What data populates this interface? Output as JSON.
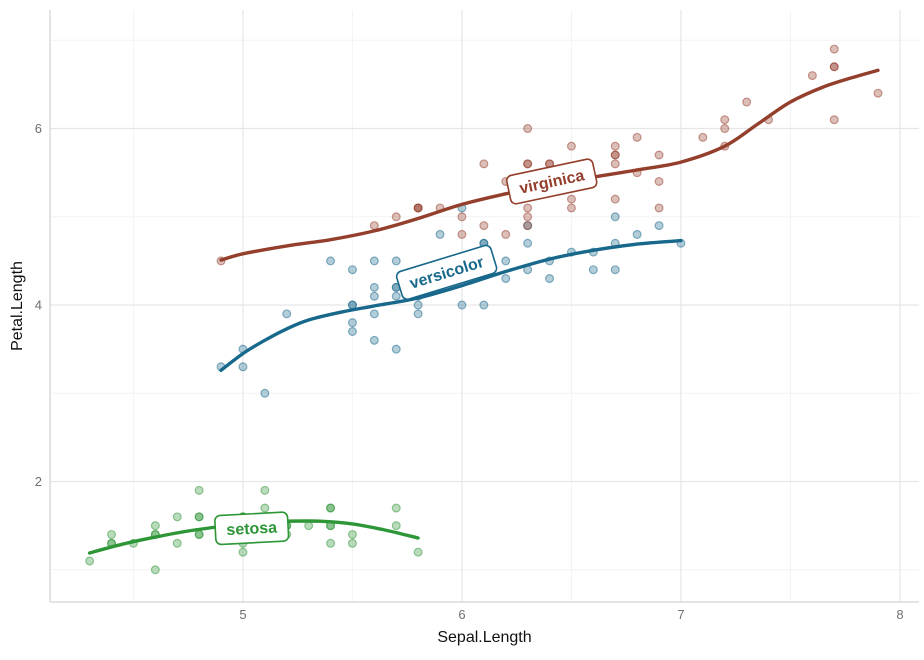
{
  "chart_data": {
    "type": "scatter",
    "title": "",
    "xlabel": "Sepal.Length",
    "ylabel": "Petal.Length",
    "xlim": [
      4.119,
      8.087
    ],
    "ylim": [
      0.635,
      7.343
    ],
    "x_ticks": [
      5,
      6,
      7,
      8
    ],
    "x_minor_ticks": [
      4.5,
      5.5,
      6.5,
      7.5
    ],
    "y_ticks": [
      2,
      4,
      6
    ],
    "y_minor_ticks": [
      1,
      3,
      5,
      7
    ],
    "grid": "major+minor",
    "legend": "inline-curve-labels",
    "series": [
      {
        "name": "setosa",
        "color": "#2d9637",
        "label": {
          "text": "setosa",
          "x": 5.04,
          "y": 1.47,
          "angle": -3
        },
        "points": [
          [
            5.1,
            1.4
          ],
          [
            4.9,
            1.4
          ],
          [
            4.7,
            1.3
          ],
          [
            4.6,
            1.5
          ],
          [
            5.0,
            1.4
          ],
          [
            5.4,
            1.7
          ],
          [
            4.6,
            1.4
          ],
          [
            5.0,
            1.5
          ],
          [
            4.4,
            1.4
          ],
          [
            4.9,
            1.5
          ],
          [
            5.4,
            1.5
          ],
          [
            4.8,
            1.6
          ],
          [
            4.8,
            1.4
          ],
          [
            4.3,
            1.1
          ],
          [
            5.8,
            1.2
          ],
          [
            5.7,
            1.5
          ],
          [
            5.4,
            1.3
          ],
          [
            5.1,
            1.4
          ],
          [
            5.7,
            1.7
          ],
          [
            5.1,
            1.5
          ],
          [
            5.4,
            1.7
          ],
          [
            5.1,
            1.5
          ],
          [
            4.6,
            1.0
          ],
          [
            5.1,
            1.7
          ],
          [
            4.8,
            1.9
          ],
          [
            5.0,
            1.6
          ],
          [
            5.0,
            1.6
          ],
          [
            5.2,
            1.5
          ],
          [
            5.2,
            1.4
          ],
          [
            4.7,
            1.6
          ],
          [
            4.8,
            1.6
          ],
          [
            5.4,
            1.5
          ],
          [
            5.2,
            1.5
          ],
          [
            5.5,
            1.4
          ],
          [
            4.9,
            1.5
          ],
          [
            5.0,
            1.2
          ],
          [
            5.5,
            1.3
          ],
          [
            4.9,
            1.4
          ],
          [
            4.4,
            1.3
          ],
          [
            5.1,
            1.5
          ],
          [
            5.0,
            1.3
          ],
          [
            4.5,
            1.3
          ],
          [
            4.4,
            1.3
          ],
          [
            5.0,
            1.6
          ],
          [
            5.1,
            1.9
          ],
          [
            4.8,
            1.4
          ],
          [
            5.1,
            1.6
          ],
          [
            4.6,
            1.4
          ],
          [
            5.3,
            1.5
          ],
          [
            5.0,
            1.4
          ]
        ],
        "smooth": [
          [
            4.3,
            1.19
          ],
          [
            4.45,
            1.29
          ],
          [
            4.6,
            1.37
          ],
          [
            4.75,
            1.44
          ],
          [
            4.9,
            1.49
          ],
          [
            5.05,
            1.53
          ],
          [
            5.2,
            1.55
          ],
          [
            5.35,
            1.55
          ],
          [
            5.5,
            1.52
          ],
          [
            5.65,
            1.45
          ],
          [
            5.8,
            1.36
          ]
        ]
      },
      {
        "name": "versicolor",
        "color": "#17688b",
        "label": {
          "text": "versicolor",
          "x": 5.93,
          "y": 4.37,
          "angle": -17
        },
        "points": [
          [
            7.0,
            4.7
          ],
          [
            6.4,
            4.5
          ],
          [
            6.9,
            4.9
          ],
          [
            5.5,
            4.0
          ],
          [
            6.5,
            4.6
          ],
          [
            5.7,
            4.5
          ],
          [
            6.3,
            4.7
          ],
          [
            4.9,
            3.3
          ],
          [
            6.6,
            4.6
          ],
          [
            5.2,
            3.9
          ],
          [
            5.0,
            3.5
          ],
          [
            5.9,
            4.2
          ],
          [
            6.0,
            4.0
          ],
          [
            6.1,
            4.7
          ],
          [
            5.6,
            3.6
          ],
          [
            6.7,
            4.4
          ],
          [
            5.6,
            4.5
          ],
          [
            5.8,
            4.1
          ],
          [
            6.2,
            4.5
          ],
          [
            5.6,
            3.9
          ],
          [
            5.9,
            4.8
          ],
          [
            6.1,
            4.0
          ],
          [
            6.3,
            4.9
          ],
          [
            6.1,
            4.7
          ],
          [
            6.4,
            4.3
          ],
          [
            6.6,
            4.4
          ],
          [
            6.8,
            4.8
          ],
          [
            6.7,
            5.0
          ],
          [
            6.0,
            4.5
          ],
          [
            5.7,
            3.5
          ],
          [
            5.5,
            3.8
          ],
          [
            5.5,
            3.7
          ],
          [
            5.8,
            3.9
          ],
          [
            6.0,
            5.1
          ],
          [
            5.4,
            4.5
          ],
          [
            6.0,
            4.5
          ],
          [
            6.7,
            4.7
          ],
          [
            6.3,
            4.4
          ],
          [
            5.6,
            4.1
          ],
          [
            5.5,
            4.0
          ],
          [
            5.5,
            4.4
          ],
          [
            6.1,
            4.6
          ],
          [
            5.8,
            4.0
          ],
          [
            5.0,
            3.3
          ],
          [
            5.6,
            4.2
          ],
          [
            5.7,
            4.2
          ],
          [
            5.7,
            4.2
          ],
          [
            6.2,
            4.3
          ],
          [
            5.1,
            3.0
          ],
          [
            5.7,
            4.1
          ]
        ],
        "smooth": [
          [
            4.9,
            3.26
          ],
          [
            5.0,
            3.45
          ],
          [
            5.1,
            3.6
          ],
          [
            5.2,
            3.73
          ],
          [
            5.3,
            3.83
          ],
          [
            5.45,
            3.92
          ],
          [
            5.6,
            3.99
          ],
          [
            5.8,
            4.08
          ],
          [
            6.0,
            4.22
          ],
          [
            6.2,
            4.38
          ],
          [
            6.4,
            4.52
          ],
          [
            6.6,
            4.62
          ],
          [
            6.8,
            4.69
          ],
          [
            7.0,
            4.73
          ]
        ]
      },
      {
        "name": "virginica",
        "color": "#943e2c",
        "label": {
          "text": "virginica",
          "x": 6.41,
          "y": 5.4,
          "angle": -12
        },
        "points": [
          [
            6.3,
            6.0
          ],
          [
            5.8,
            5.1
          ],
          [
            7.1,
            5.9
          ],
          [
            6.3,
            5.6
          ],
          [
            6.5,
            5.8
          ],
          [
            7.6,
            6.6
          ],
          [
            4.9,
            4.5
          ],
          [
            7.3,
            6.3
          ],
          [
            6.7,
            5.8
          ],
          [
            7.2,
            6.1
          ],
          [
            6.5,
            5.1
          ],
          [
            6.4,
            5.3
          ],
          [
            6.8,
            5.5
          ],
          [
            5.7,
            5.0
          ],
          [
            5.8,
            5.1
          ],
          [
            6.4,
            5.3
          ],
          [
            6.5,
            5.5
          ],
          [
            7.7,
            6.7
          ],
          [
            7.7,
            6.9
          ],
          [
            6.0,
            5.0
          ],
          [
            6.9,
            5.7
          ],
          [
            5.6,
            4.9
          ],
          [
            7.7,
            6.7
          ],
          [
            6.3,
            4.9
          ],
          [
            6.7,
            5.7
          ],
          [
            7.2,
            6.0
          ],
          [
            6.2,
            4.8
          ],
          [
            6.1,
            4.9
          ],
          [
            6.4,
            5.6
          ],
          [
            7.2,
            5.8
          ],
          [
            7.4,
            6.1
          ],
          [
            7.9,
            6.4
          ],
          [
            6.4,
            5.6
          ],
          [
            6.3,
            5.1
          ],
          [
            6.1,
            5.6
          ],
          [
            7.7,
            6.1
          ],
          [
            6.3,
            5.6
          ],
          [
            6.4,
            5.5
          ],
          [
            6.0,
            4.8
          ],
          [
            6.9,
            5.4
          ],
          [
            6.7,
            5.6
          ],
          [
            6.9,
            5.1
          ],
          [
            5.8,
            5.1
          ],
          [
            6.8,
            5.9
          ],
          [
            6.7,
            5.7
          ],
          [
            6.7,
            5.2
          ],
          [
            6.3,
            5.0
          ],
          [
            6.5,
            5.2
          ],
          [
            6.2,
            5.4
          ],
          [
            5.9,
            5.1
          ]
        ],
        "smooth": [
          [
            4.9,
            4.51
          ],
          [
            5.0,
            4.58
          ],
          [
            5.2,
            4.67
          ],
          [
            5.4,
            4.74
          ],
          [
            5.6,
            4.84
          ],
          [
            5.8,
            4.98
          ],
          [
            6.0,
            5.14
          ],
          [
            6.2,
            5.26
          ],
          [
            6.4,
            5.36
          ],
          [
            6.6,
            5.45
          ],
          [
            6.8,
            5.53
          ],
          [
            7.0,
            5.62
          ],
          [
            7.2,
            5.8
          ],
          [
            7.35,
            6.05
          ],
          [
            7.5,
            6.3
          ],
          [
            7.65,
            6.47
          ],
          [
            7.8,
            6.59
          ],
          [
            7.9,
            6.66
          ]
        ]
      }
    ],
    "style": {
      "background": "#ffffff",
      "grid_major": "#e6e6e6",
      "grid_minor": "#f3f3f3",
      "axis_line": "#d3d3d3",
      "tick_label_color": "#6f6f6f",
      "axis_title_color": "#111111",
      "label_box_fill": "#ffffff",
      "point_radius": 3.9,
      "point_fill_opacity": 0.33,
      "point_stroke_opacity": 0.5,
      "line_width": 3.4
    }
  }
}
